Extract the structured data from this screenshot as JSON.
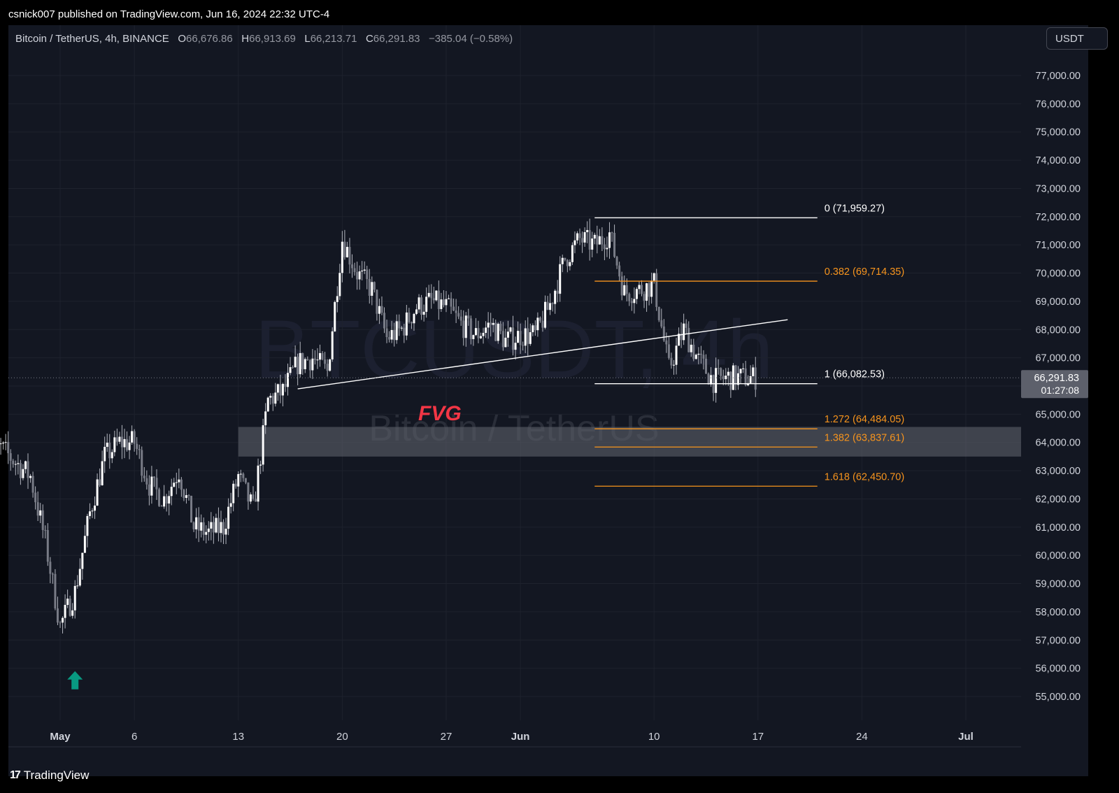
{
  "header": {
    "published": "csnick007 published on TradingView.com, Jun 16, 2024 22:32 UTC-4"
  },
  "legend": {
    "symbol": "Bitcoin / TetherUS, 4h, BINANCE",
    "o_label": "O",
    "o": "66,676.86",
    "h_label": "H",
    "h": "66,913.69",
    "l_label": "L",
    "l": "66,213.71",
    "c_label": "C",
    "c": "66,291.83",
    "change": "−385.04 (−0.58%)"
  },
  "currency_button": "USDT",
  "watermark": {
    "main": "BTCUSDT, 4h",
    "sub": "Bitcoin / TetherUS"
  },
  "footer": {
    "brand": "TradingView"
  },
  "price_tag": {
    "price": "66,291.83",
    "countdown": "01:27:08"
  },
  "colors": {
    "bg": "#131722",
    "candle": "#ffffff",
    "fib_white": "#ffffff",
    "fib_orange": "#f7941d",
    "fvg_text": "#f23645",
    "arrow": "#089981",
    "fvg_zone": "#5d606b"
  },
  "annotations": {
    "fvg_label": "FVG",
    "fvg_zone": {
      "low": 63500,
      "high": 64550,
      "start": "2024-05-13"
    },
    "trendline": {
      "from": {
        "t": "2024-05-17",
        "price": 65900
      },
      "to": {
        "t": "2024-06-19",
        "price": 68350
      }
    },
    "arrow": {
      "t": "2024-05-02",
      "price": 55600,
      "icon": "up-arrow-icon"
    }
  },
  "chart_data": {
    "type": "candlestick",
    "title": "",
    "xlabel": "",
    "ylabel": "",
    "timeframe": "4h",
    "ylim": [
      54500,
      78000
    ],
    "y_ticks": [
      "77,000.00",
      "76,000.00",
      "75,000.00",
      "74,000.00",
      "73,000.00",
      "72,000.00",
      "71,000.00",
      "70,000.00",
      "69,000.00",
      "68,000.00",
      "67,000.00",
      "66,000.00",
      "65,000.00",
      "64,000.00",
      "63,000.00",
      "62,000.00",
      "61,000.00",
      "60,000.00",
      "59,000.00",
      "58,000.00",
      "57,000.00",
      "56,000.00",
      "55,000.00"
    ],
    "x_ticks": [
      {
        "label": "May",
        "date": "2024-05-01"
      },
      {
        "label": "6",
        "date": "2024-05-06"
      },
      {
        "label": "13",
        "date": "2024-05-13"
      },
      {
        "label": "20",
        "date": "2024-05-20"
      },
      {
        "label": "27",
        "date": "2024-05-27"
      },
      {
        "label": "Jun",
        "date": "2024-06-01"
      },
      {
        "label": "10",
        "date": "2024-06-10"
      },
      {
        "label": "17",
        "date": "2024-06-17"
      },
      {
        "label": "24",
        "date": "2024-06-24"
      },
      {
        "label": "Jul",
        "date": "2024-07-01"
      }
    ],
    "grid": true,
    "close_path": [
      [
        "2024-04-26",
        63600
      ],
      [
        "2024-04-27",
        63800
      ],
      [
        "2024-04-28",
        63300
      ],
      [
        "2024-04-29",
        62800
      ],
      [
        "2024-04-30",
        60500
      ],
      [
        "2024-05-01",
        57500
      ],
      [
        "2024-05-02",
        58700
      ],
      [
        "2024-05-03",
        61500
      ],
      [
        "2024-05-04",
        63500
      ],
      [
        "2024-05-05",
        64000
      ],
      [
        "2024-05-06",
        64000
      ],
      [
        "2024-05-07",
        62500
      ],
      [
        "2024-05-08",
        62000
      ],
      [
        "2024-05-09",
        63000
      ],
      [
        "2024-05-10",
        61000
      ],
      [
        "2024-05-11",
        60800
      ],
      [
        "2024-05-12",
        61000
      ],
      [
        "2024-05-13",
        62800
      ],
      [
        "2024-05-14",
        61600
      ],
      [
        "2024-05-15",
        65500
      ],
      [
        "2024-05-16",
        65800
      ],
      [
        "2024-05-17",
        66800
      ],
      [
        "2024-05-18",
        67000
      ],
      [
        "2024-05-19",
        66500
      ],
      [
        "2024-05-20",
        71200
      ],
      [
        "2024-05-21",
        70000
      ],
      [
        "2024-05-22",
        69400
      ],
      [
        "2024-05-23",
        67700
      ],
      [
        "2024-05-24",
        68000
      ],
      [
        "2024-05-25",
        68800
      ],
      [
        "2024-05-26",
        69000
      ],
      [
        "2024-05-27",
        68800
      ],
      [
        "2024-05-28",
        68200
      ],
      [
        "2024-05-29",
        67800
      ],
      [
        "2024-05-30",
        68200
      ],
      [
        "2024-05-31",
        67600
      ],
      [
        "2024-06-01",
        67800
      ],
      [
        "2024-06-02",
        67800
      ],
      [
        "2024-06-03",
        68900
      ],
      [
        "2024-06-04",
        70500
      ],
      [
        "2024-06-05",
        71200
      ],
      [
        "2024-06-06",
        71000
      ],
      [
        "2024-06-07",
        71400
      ],
      [
        "2024-06-08",
        69300
      ],
      [
        "2024-06-09",
        69400
      ],
      [
        "2024-06-10",
        69600
      ],
      [
        "2024-06-11",
        66600
      ],
      [
        "2024-06-12",
        68000
      ],
      [
        "2024-06-13",
        66900
      ],
      [
        "2024-06-14",
        66200
      ],
      [
        "2024-06-15",
        66300
      ],
      [
        "2024-06-16",
        66290
      ]
    ]
  },
  "fib_levels": [
    {
      "label": "0 (71,959.27)",
      "price": 71959.27,
      "color": "white"
    },
    {
      "label": "0.382 (69,714.35)",
      "price": 69714.35,
      "color": "orange"
    },
    {
      "label": "1 (66,082.53)",
      "price": 66082.53,
      "color": "white"
    },
    {
      "label": "1.272 (64,484.05)",
      "price": 64484.05,
      "color": "orange"
    },
    {
      "label": "1.382 (63,837.61)",
      "price": 63837.61,
      "color": "orange"
    },
    {
      "label": "1.618 (62,450.70)",
      "price": 62450.7,
      "color": "orange"
    }
  ],
  "fib_range": {
    "start": "2024-06-06",
    "end": "2024-06-21"
  }
}
